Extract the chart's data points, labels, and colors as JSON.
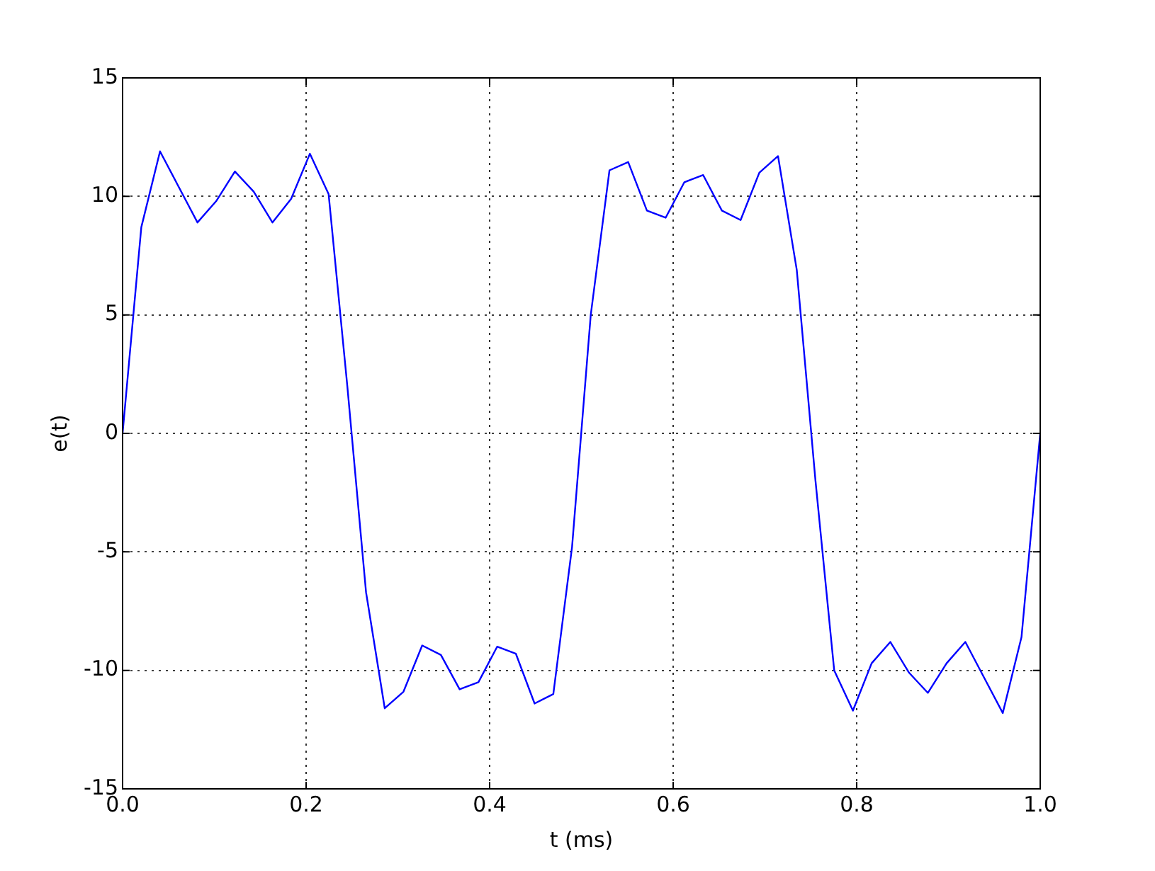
{
  "chart_data": {
    "type": "line",
    "xlabel": "t (ms)",
    "ylabel": "e(t)",
    "x": [
      0,
      0.0204,
      0.0408,
      0.0612,
      0.0816,
      0.102,
      0.1224,
      0.1429,
      0.1633,
      0.1837,
      0.2041,
      0.2245,
      0.2449,
      0.2653,
      0.2857,
      0.3061,
      0.3265,
      0.3469,
      0.3673,
      0.3878,
      0.4082,
      0.4286,
      0.449,
      0.4694,
      0.4898,
      0.5102,
      0.5306,
      0.551,
      0.5714,
      0.5918,
      0.6122,
      0.6327,
      0.6531,
      0.6735,
      0.6939,
      0.7143,
      0.7347,
      0.7551,
      0.7755,
      0.7959,
      0.8163,
      0.8367,
      0.8571,
      0.8776,
      0.898,
      0.9184,
      0.9388,
      0.9592,
      0.9796,
      1
    ],
    "series": [
      {
        "color": "#0000ff",
        "values": [
          0,
          8.7,
          11.9,
          10.4,
          8.9,
          9.8,
          11.05,
          10.2,
          8.9,
          9.9,
          11.8,
          10.1,
          2,
          -6.7,
          -11.6,
          -10.9,
          -8.95,
          -9.35,
          -10.8,
          -10.5,
          -9,
          -9.3,
          -11.4,
          -11,
          -4.8,
          5,
          11.1,
          11.45,
          9.4,
          9.1,
          10.6,
          10.9,
          9.4,
          9,
          11,
          11.7,
          6.9,
          -2,
          -10,
          -11.7,
          -9.7,
          -8.8,
          -10.1,
          -10.95,
          -9.7,
          -8.8,
          -10.3,
          -11.8,
          -8.6,
          0
        ]
      }
    ],
    "xlim": [
      0,
      1
    ],
    "xticks": [
      {
        "value": 0,
        "label": "0.0"
      },
      {
        "value": 0.2,
        "label": "0.2"
      },
      {
        "value": 0.4,
        "label": "0.4"
      },
      {
        "value": 0.6,
        "label": "0.6"
      },
      {
        "value": 0.8,
        "label": "0.8"
      },
      {
        "value": 1,
        "label": "1.0"
      }
    ],
    "ylim": [
      -15,
      15
    ],
    "yticks": [
      -15,
      -10,
      -5,
      0,
      5,
      10,
      15
    ],
    "grid": true,
    "line_style": "solid",
    "marker": "none",
    "legend": false
  }
}
